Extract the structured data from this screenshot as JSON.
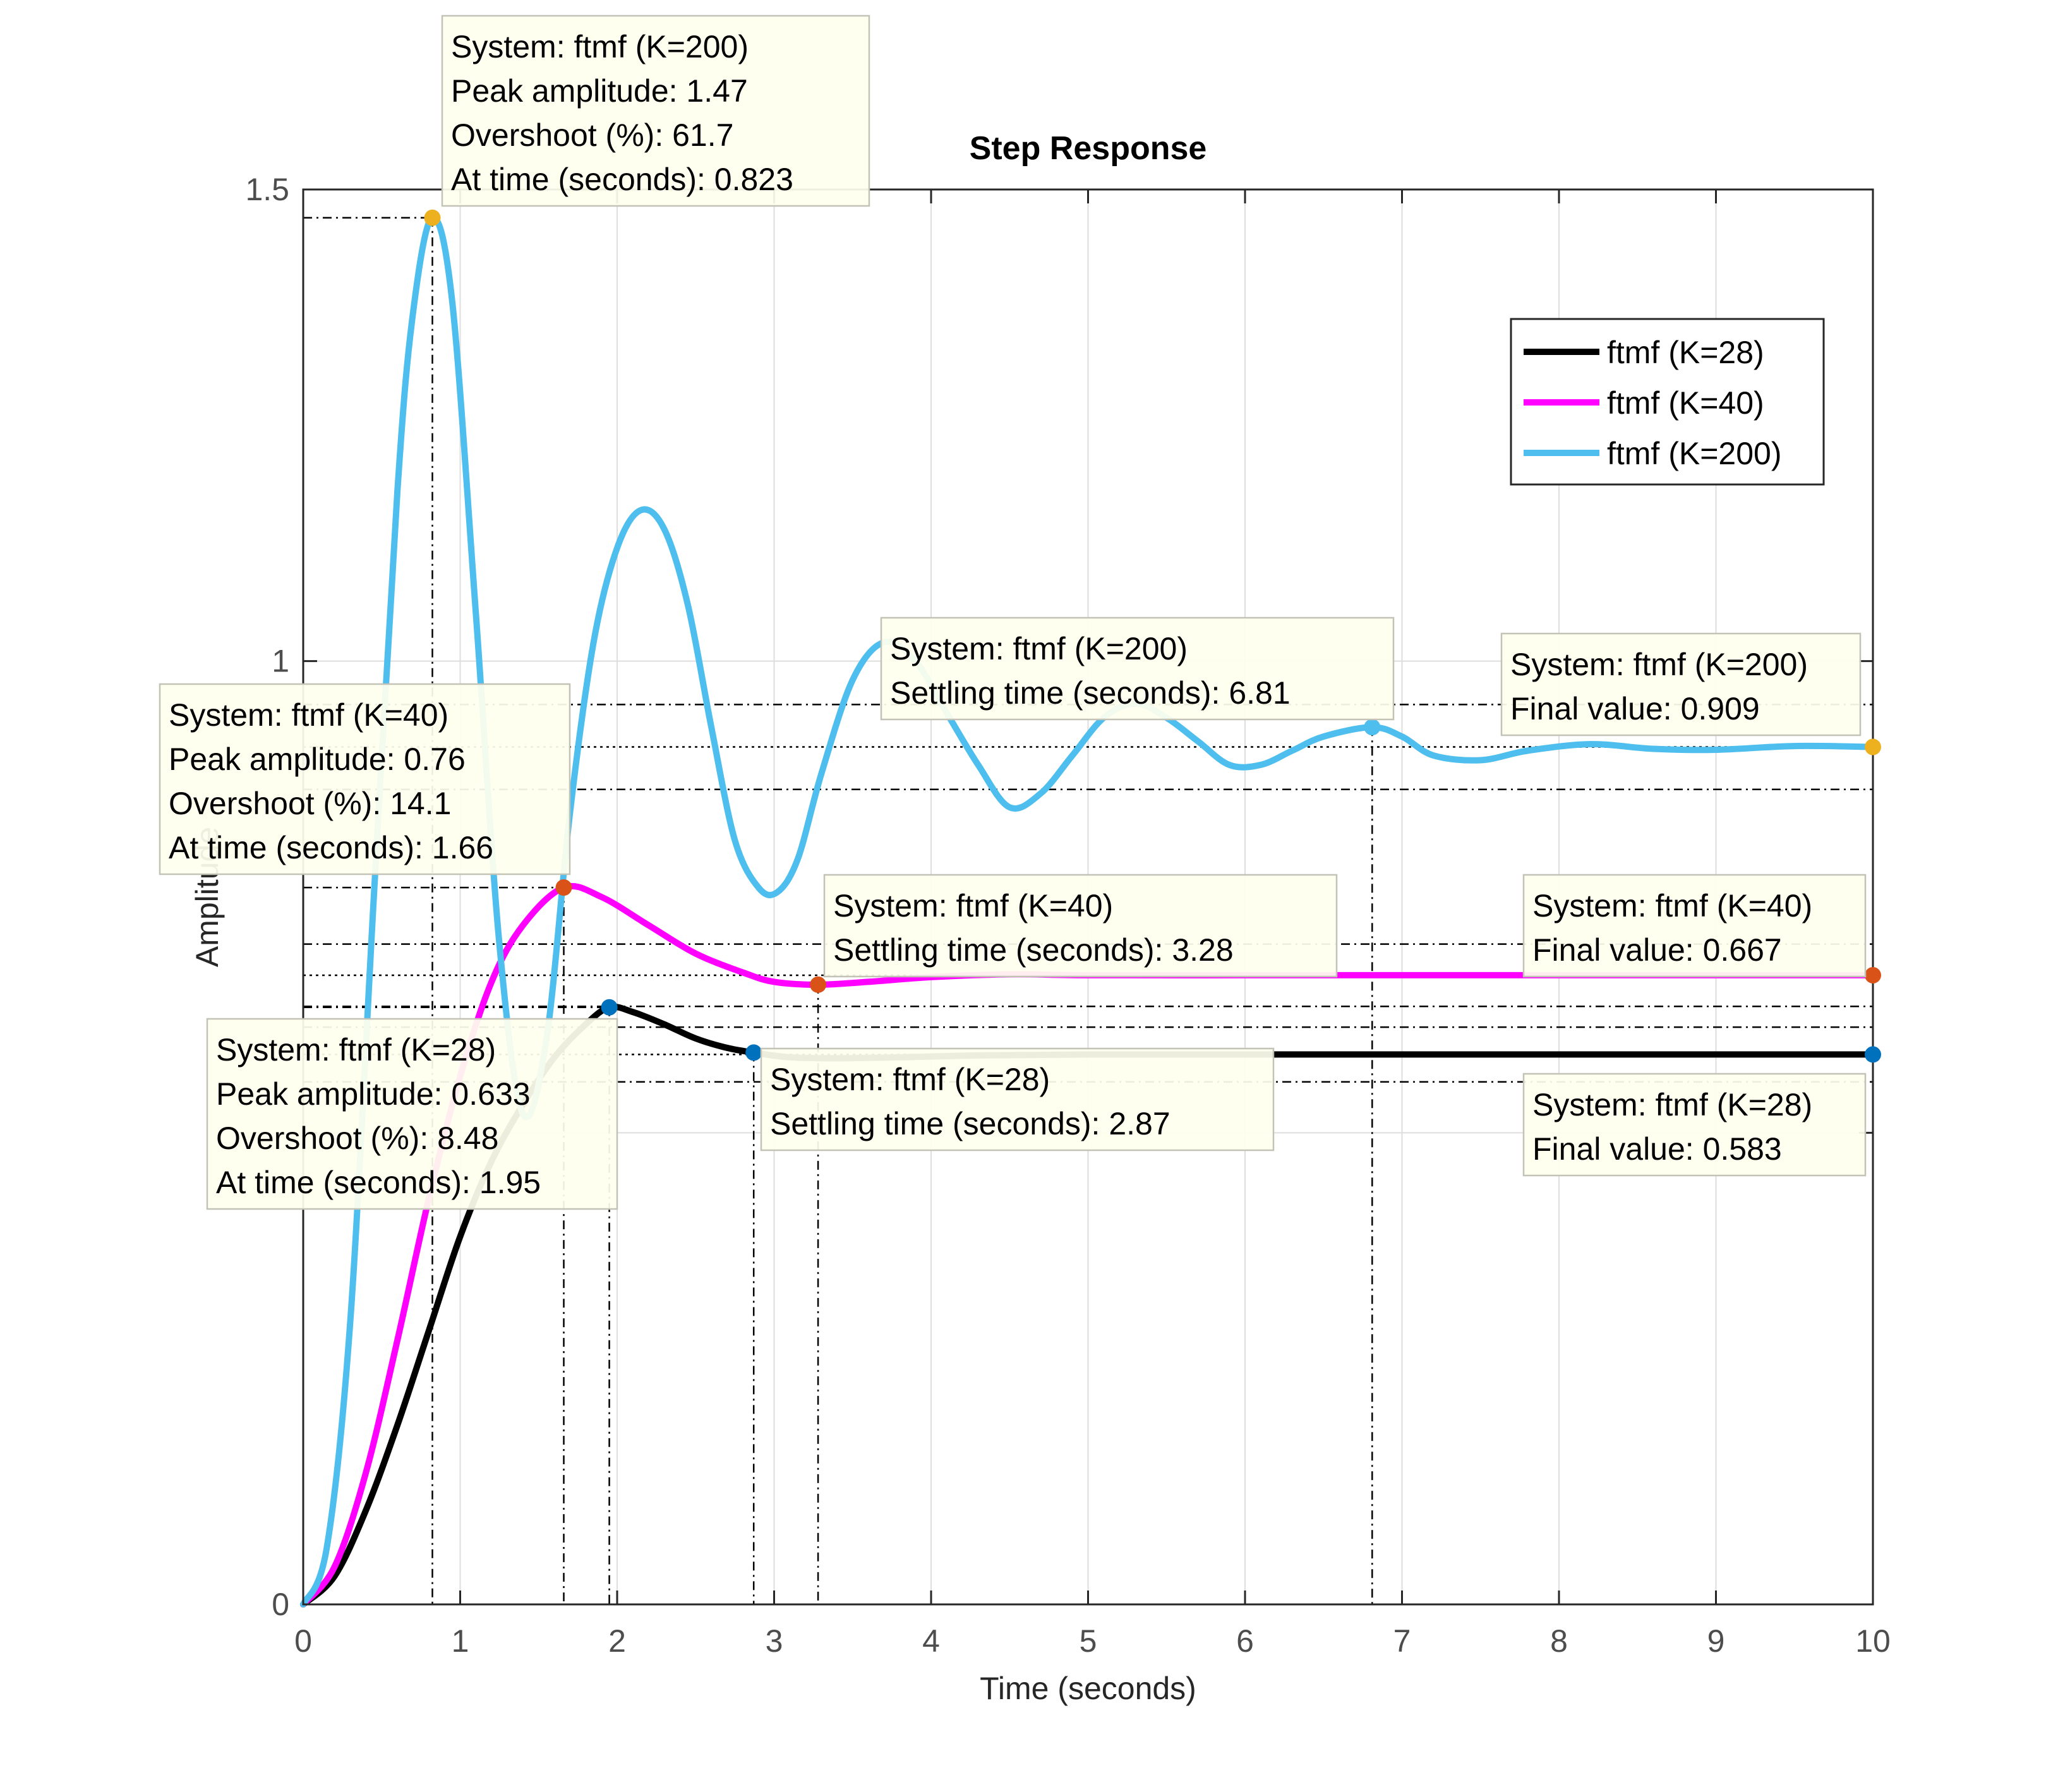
{
  "chart_data": {
    "type": "line",
    "title": "Step Response",
    "xlabel": "Time (seconds)",
    "ylabel": "Amplitude",
    "xlim": [
      0,
      10
    ],
    "ylim": [
      0,
      1.5
    ],
    "x_ticks": [
      0,
      1,
      2,
      3,
      4,
      5,
      6,
      7,
      8,
      9,
      10
    ],
    "y_ticks": [
      0,
      0.5,
      1,
      1.5
    ],
    "x_tick_labels": [
      "0",
      "1",
      "2",
      "3",
      "4",
      "5",
      "6",
      "7",
      "8",
      "9",
      "10"
    ],
    "y_tick_labels": [
      "0",
      "",
      "1",
      "1.5"
    ],
    "grid": true,
    "legend_position": "top-right",
    "series": [
      {
        "name": "ftmf (K=28)",
        "color": "#000000",
        "x": [
          0,
          0.2,
          0.4,
          0.6,
          0.8,
          1.0,
          1.2,
          1.4,
          1.6,
          1.8,
          1.95,
          2.1,
          2.3,
          2.5,
          2.7,
          2.87,
          3.1,
          3.4,
          3.8,
          4.3,
          5,
          6,
          7,
          8,
          9,
          10
        ],
        "y": [
          0,
          0.03,
          0.1,
          0.19,
          0.29,
          0.39,
          0.47,
          0.53,
          0.58,
          0.615,
          0.633,
          0.628,
          0.615,
          0.6,
          0.59,
          0.585,
          0.58,
          0.579,
          0.58,
          0.582,
          0.583,
          0.583,
          0.583,
          0.583,
          0.583,
          0.583
        ]
      },
      {
        "name": "ftmf (K=40)",
        "color": "#ff00ff",
        "x": [
          0,
          0.2,
          0.4,
          0.6,
          0.8,
          1.0,
          1.2,
          1.4,
          1.66,
          1.9,
          2.2,
          2.5,
          2.8,
          3.0,
          3.28,
          3.6,
          4.0,
          4.5,
          5,
          6,
          7,
          8,
          9,
          10
        ],
        "y": [
          0,
          0.04,
          0.14,
          0.28,
          0.43,
          0.56,
          0.66,
          0.72,
          0.76,
          0.75,
          0.72,
          0.69,
          0.67,
          0.66,
          0.657,
          0.66,
          0.665,
          0.668,
          0.667,
          0.667,
          0.667,
          0.667,
          0.667,
          0.667
        ]
      },
      {
        "name": "ftmf (K=200)",
        "color": "#4dbeee",
        "x": [
          0,
          0.15,
          0.3,
          0.45,
          0.6,
          0.7,
          0.823,
          0.95,
          1.1,
          1.25,
          1.4,
          1.55,
          1.7,
          1.85,
          2.0,
          2.15,
          2.3,
          2.45,
          2.6,
          2.75,
          2.9,
          3.02,
          3.15,
          3.3,
          3.5,
          3.7,
          3.9,
          4.1,
          4.3,
          4.5,
          4.7,
          4.9,
          5.1,
          5.3,
          5.5,
          5.7,
          5.9,
          6.1,
          6.3,
          6.5,
          6.81,
          7.0,
          7.2,
          7.5,
          7.8,
          8.2,
          8.6,
          9.0,
          9.5,
          10
        ],
        "y": [
          0,
          0.06,
          0.3,
          0.75,
          1.18,
          1.37,
          1.47,
          1.38,
          1.05,
          0.7,
          0.52,
          0.6,
          0.84,
          1.02,
          1.12,
          1.16,
          1.14,
          1.06,
          0.93,
          0.81,
          0.76,
          0.755,
          0.79,
          0.88,
          0.98,
          1.02,
          1.0,
          0.945,
          0.89,
          0.845,
          0.86,
          0.9,
          0.94,
          0.955,
          0.94,
          0.915,
          0.89,
          0.89,
          0.905,
          0.92,
          0.93,
          0.92,
          0.9,
          0.895,
          0.905,
          0.912,
          0.907,
          0.906,
          0.91,
          0.909
        ]
      }
    ],
    "legend": [
      "ftmf (K=28)",
      "ftmf (K=40)",
      "ftmf (K=200)"
    ],
    "datatips": [
      {
        "lines": [
          "System: ftmf (K=200)",
          "Peak amplitude: 1.47",
          "Overshoot (%): 61.7",
          "At time (seconds): 0.823"
        ],
        "x": 0.823,
        "y": 1.47,
        "color": "#edb120",
        "kind": "peak"
      },
      {
        "lines": [
          "System: ftmf (K=40)",
          "Peak amplitude: 0.76",
          "Overshoot (%): 14.1",
          "At time (seconds): 1.66"
        ],
        "x": 1.66,
        "y": 0.76,
        "color": "#d95319",
        "kind": "peak"
      },
      {
        "lines": [
          "System: ftmf (K=28)",
          "Peak amplitude: 0.633",
          "Overshoot (%): 8.48",
          "At time (seconds): 1.95"
        ],
        "x": 1.95,
        "y": 0.633,
        "color": "#0072bd",
        "kind": "peak"
      },
      {
        "lines": [
          "System: ftmf (K=200)",
          "Settling time (seconds): 6.81"
        ],
        "x": 6.81,
        "y": 0.93,
        "color": "#4dbeee",
        "kind": "settling",
        "band": [
          0.864,
          0.954
        ]
      },
      {
        "lines": [
          "System: ftmf (K=40)",
          "Settling time (seconds): 3.28"
        ],
        "x": 3.28,
        "y": 0.657,
        "color": "#d95319",
        "kind": "settling",
        "band": [
          0.634,
          0.7
        ]
      },
      {
        "lines": [
          "System: ftmf (K=28)",
          "Settling time (seconds): 2.87"
        ],
        "x": 2.87,
        "y": 0.585,
        "color": "#0072bd",
        "kind": "settling",
        "band": [
          0.554,
          0.612
        ]
      },
      {
        "lines": [
          "System: ftmf (K=200)",
          "Final value: 0.909"
        ],
        "x": 10,
        "y": 0.909,
        "color": "#edb120",
        "kind": "final"
      },
      {
        "lines": [
          "System: ftmf (K=40)",
          "Final value: 0.667"
        ],
        "x": 10,
        "y": 0.667,
        "color": "#d95319",
        "kind": "final"
      },
      {
        "lines": [
          "System: ftmf (K=28)",
          "Final value: 0.583"
        ],
        "x": 10,
        "y": 0.583,
        "color": "#0072bd",
        "kind": "final"
      }
    ]
  }
}
